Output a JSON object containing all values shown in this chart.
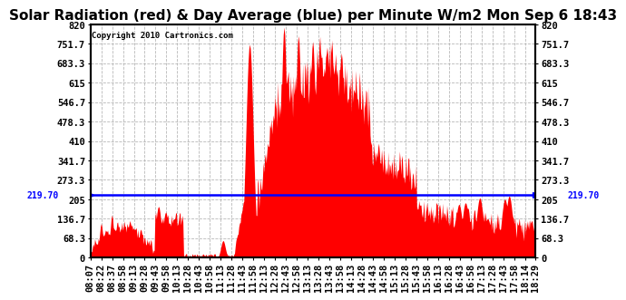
{
  "title": "Solar Radiation (red) & Day Average (blue) per Minute W/m2 Mon Sep 6 18:43",
  "copyright": "Copyright 2010 Cartronics.com",
  "avg_line_value": 219.7,
  "avg_label": "219.70",
  "ymin": 0.0,
  "ymax": 820.0,
  "yticks": [
    0.0,
    68.3,
    136.7,
    205.0,
    273.3,
    341.7,
    410.0,
    478.3,
    546.7,
    615.0,
    683.3,
    751.7,
    820.0
  ],
  "xtick_labels": [
    "08:07",
    "08:22",
    "08:37",
    "08:58",
    "09:13",
    "09:28",
    "09:43",
    "09:58",
    "10:13",
    "10:28",
    "10:43",
    "10:58",
    "11:13",
    "11:28",
    "11:43",
    "11:58",
    "12:13",
    "12:28",
    "12:43",
    "12:58",
    "13:13",
    "13:28",
    "13:43",
    "13:58",
    "14:13",
    "14:28",
    "14:43",
    "14:58",
    "15:13",
    "15:28",
    "15:43",
    "15:58",
    "16:13",
    "16:28",
    "16:43",
    "16:58",
    "17:13",
    "17:28",
    "17:43",
    "17:58",
    "18:14",
    "18:29"
  ],
  "bg_color": "#ffffff",
  "fill_color": "#ff0000",
  "line_color": "#0000ff",
  "grid_color": "#b0b0b0",
  "title_fontsize": 11,
  "tick_fontsize": 7.5
}
